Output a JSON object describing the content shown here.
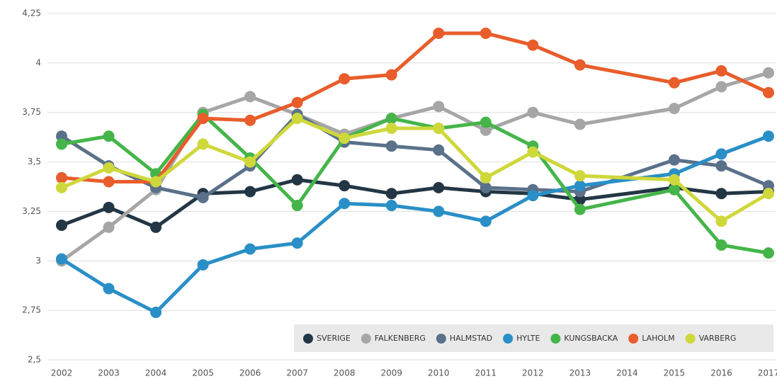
{
  "chart_data": {
    "type": "line",
    "x": [
      2002,
      2003,
      2004,
      2005,
      2006,
      2007,
      2008,
      2009,
      2010,
      2011,
      2012,
      2013,
      2015,
      2016,
      2017
    ],
    "xlim": [
      2002,
      2017
    ],
    "xticks": [
      2002,
      2003,
      2004,
      2005,
      2006,
      2007,
      2008,
      2009,
      2010,
      2011,
      2012,
      2013,
      2014,
      2015,
      2016,
      2017
    ],
    "ylim": [
      2.5,
      4.25
    ],
    "yticks": [
      {
        "value": 2.5,
        "label": "2,5"
      },
      {
        "value": 2.75,
        "label": "2,75"
      },
      3,
      {
        "value": 3.25,
        "label": "3,25"
      },
      {
        "value": 3.5,
        "label": "3,5"
      },
      {
        "value": 3.75,
        "label": "3,75"
      },
      4,
      {
        "value": 4.25,
        "label": "4,25"
      }
    ],
    "grid": true,
    "legend": "bottom-right",
    "series": [
      {
        "name": "SVERIGE",
        "color": "#233645",
        "values": [
          3.18,
          3.27,
          3.17,
          3.34,
          3.35,
          3.41,
          3.38,
          3.34,
          3.37,
          3.35,
          3.34,
          3.31,
          3.37,
          3.34,
          3.35
        ]
      },
      {
        "name": "FALKENBERG",
        "color": "#a6a6a6",
        "values": [
          3.0,
          3.17,
          3.36,
          3.75,
          3.83,
          3.74,
          3.64,
          3.72,
          3.78,
          3.66,
          3.75,
          3.69,
          3.77,
          3.88,
          3.95
        ]
      },
      {
        "name": "HALMSTAD",
        "color": "#5a7189",
        "values": [
          3.63,
          3.48,
          3.37,
          3.32,
          3.48,
          3.74,
          3.6,
          3.58,
          3.56,
          3.37,
          3.36,
          3.35,
          3.51,
          3.48,
          3.38
        ]
      },
      {
        "name": "HYLTE",
        "color": "#2a8fc6",
        "values": [
          3.01,
          2.86,
          2.74,
          2.98,
          3.06,
          3.09,
          3.29,
          3.28,
          3.25,
          3.2,
          3.33,
          3.38,
          3.44,
          3.54,
          3.63
        ]
      },
      {
        "name": "KUNGSBACKA",
        "color": "#45b549",
        "values": [
          3.59,
          3.63,
          3.44,
          3.74,
          3.52,
          3.28,
          3.62,
          3.72,
          3.67,
          3.7,
          3.58,
          3.26,
          3.36,
          3.08,
          3.04
        ]
      },
      {
        "name": "LAHOLM",
        "color": "#e85d2b",
        "values": [
          3.42,
          3.4,
          3.4,
          3.72,
          3.71,
          3.8,
          3.92,
          3.94,
          4.15,
          4.15,
          4.09,
          3.99,
          3.9,
          3.96,
          3.85
        ]
      },
      {
        "name": "VARBERG",
        "color": "#cfd83a",
        "values": [
          3.37,
          3.47,
          3.4,
          3.59,
          3.5,
          3.72,
          3.62,
          3.67,
          3.67,
          3.42,
          3.55,
          3.43,
          3.41,
          3.2,
          3.34
        ]
      }
    ]
  }
}
